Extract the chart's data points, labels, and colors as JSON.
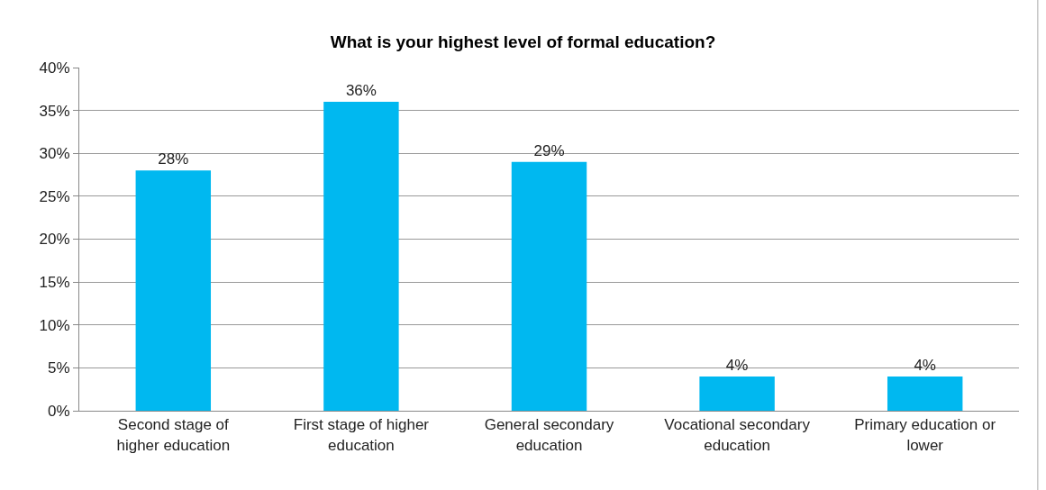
{
  "chart_data": {
    "type": "bar",
    "title": "What is your highest level of formal education?",
    "categories": [
      "Second stage of\nhigher education",
      "First stage of higher\neducation",
      "General secondary\neducation",
      "Vocational secondary\neducation",
      "Primary education or\nlower"
    ],
    "values": [
      28,
      36,
      29,
      4,
      4
    ],
    "value_labels": [
      "28%",
      "36%",
      "29%",
      "4%",
      "4%"
    ],
    "color": "#00b8f0",
    "ylim": [
      0,
      40
    ],
    "yticks": [
      {
        "value": 0,
        "label": "0%"
      },
      {
        "value": 5,
        "label": "5%"
      },
      {
        "value": 10,
        "label": "10%"
      },
      {
        "value": 15,
        "label": "15%"
      },
      {
        "value": 20,
        "label": "20%"
      },
      {
        "value": 25,
        "label": "25%"
      },
      {
        "value": 30,
        "label": "30%"
      },
      {
        "value": 35,
        "label": "35%"
      },
      {
        "value": 40,
        "label": "40%"
      }
    ],
    "grid": "y",
    "legend": false
  }
}
